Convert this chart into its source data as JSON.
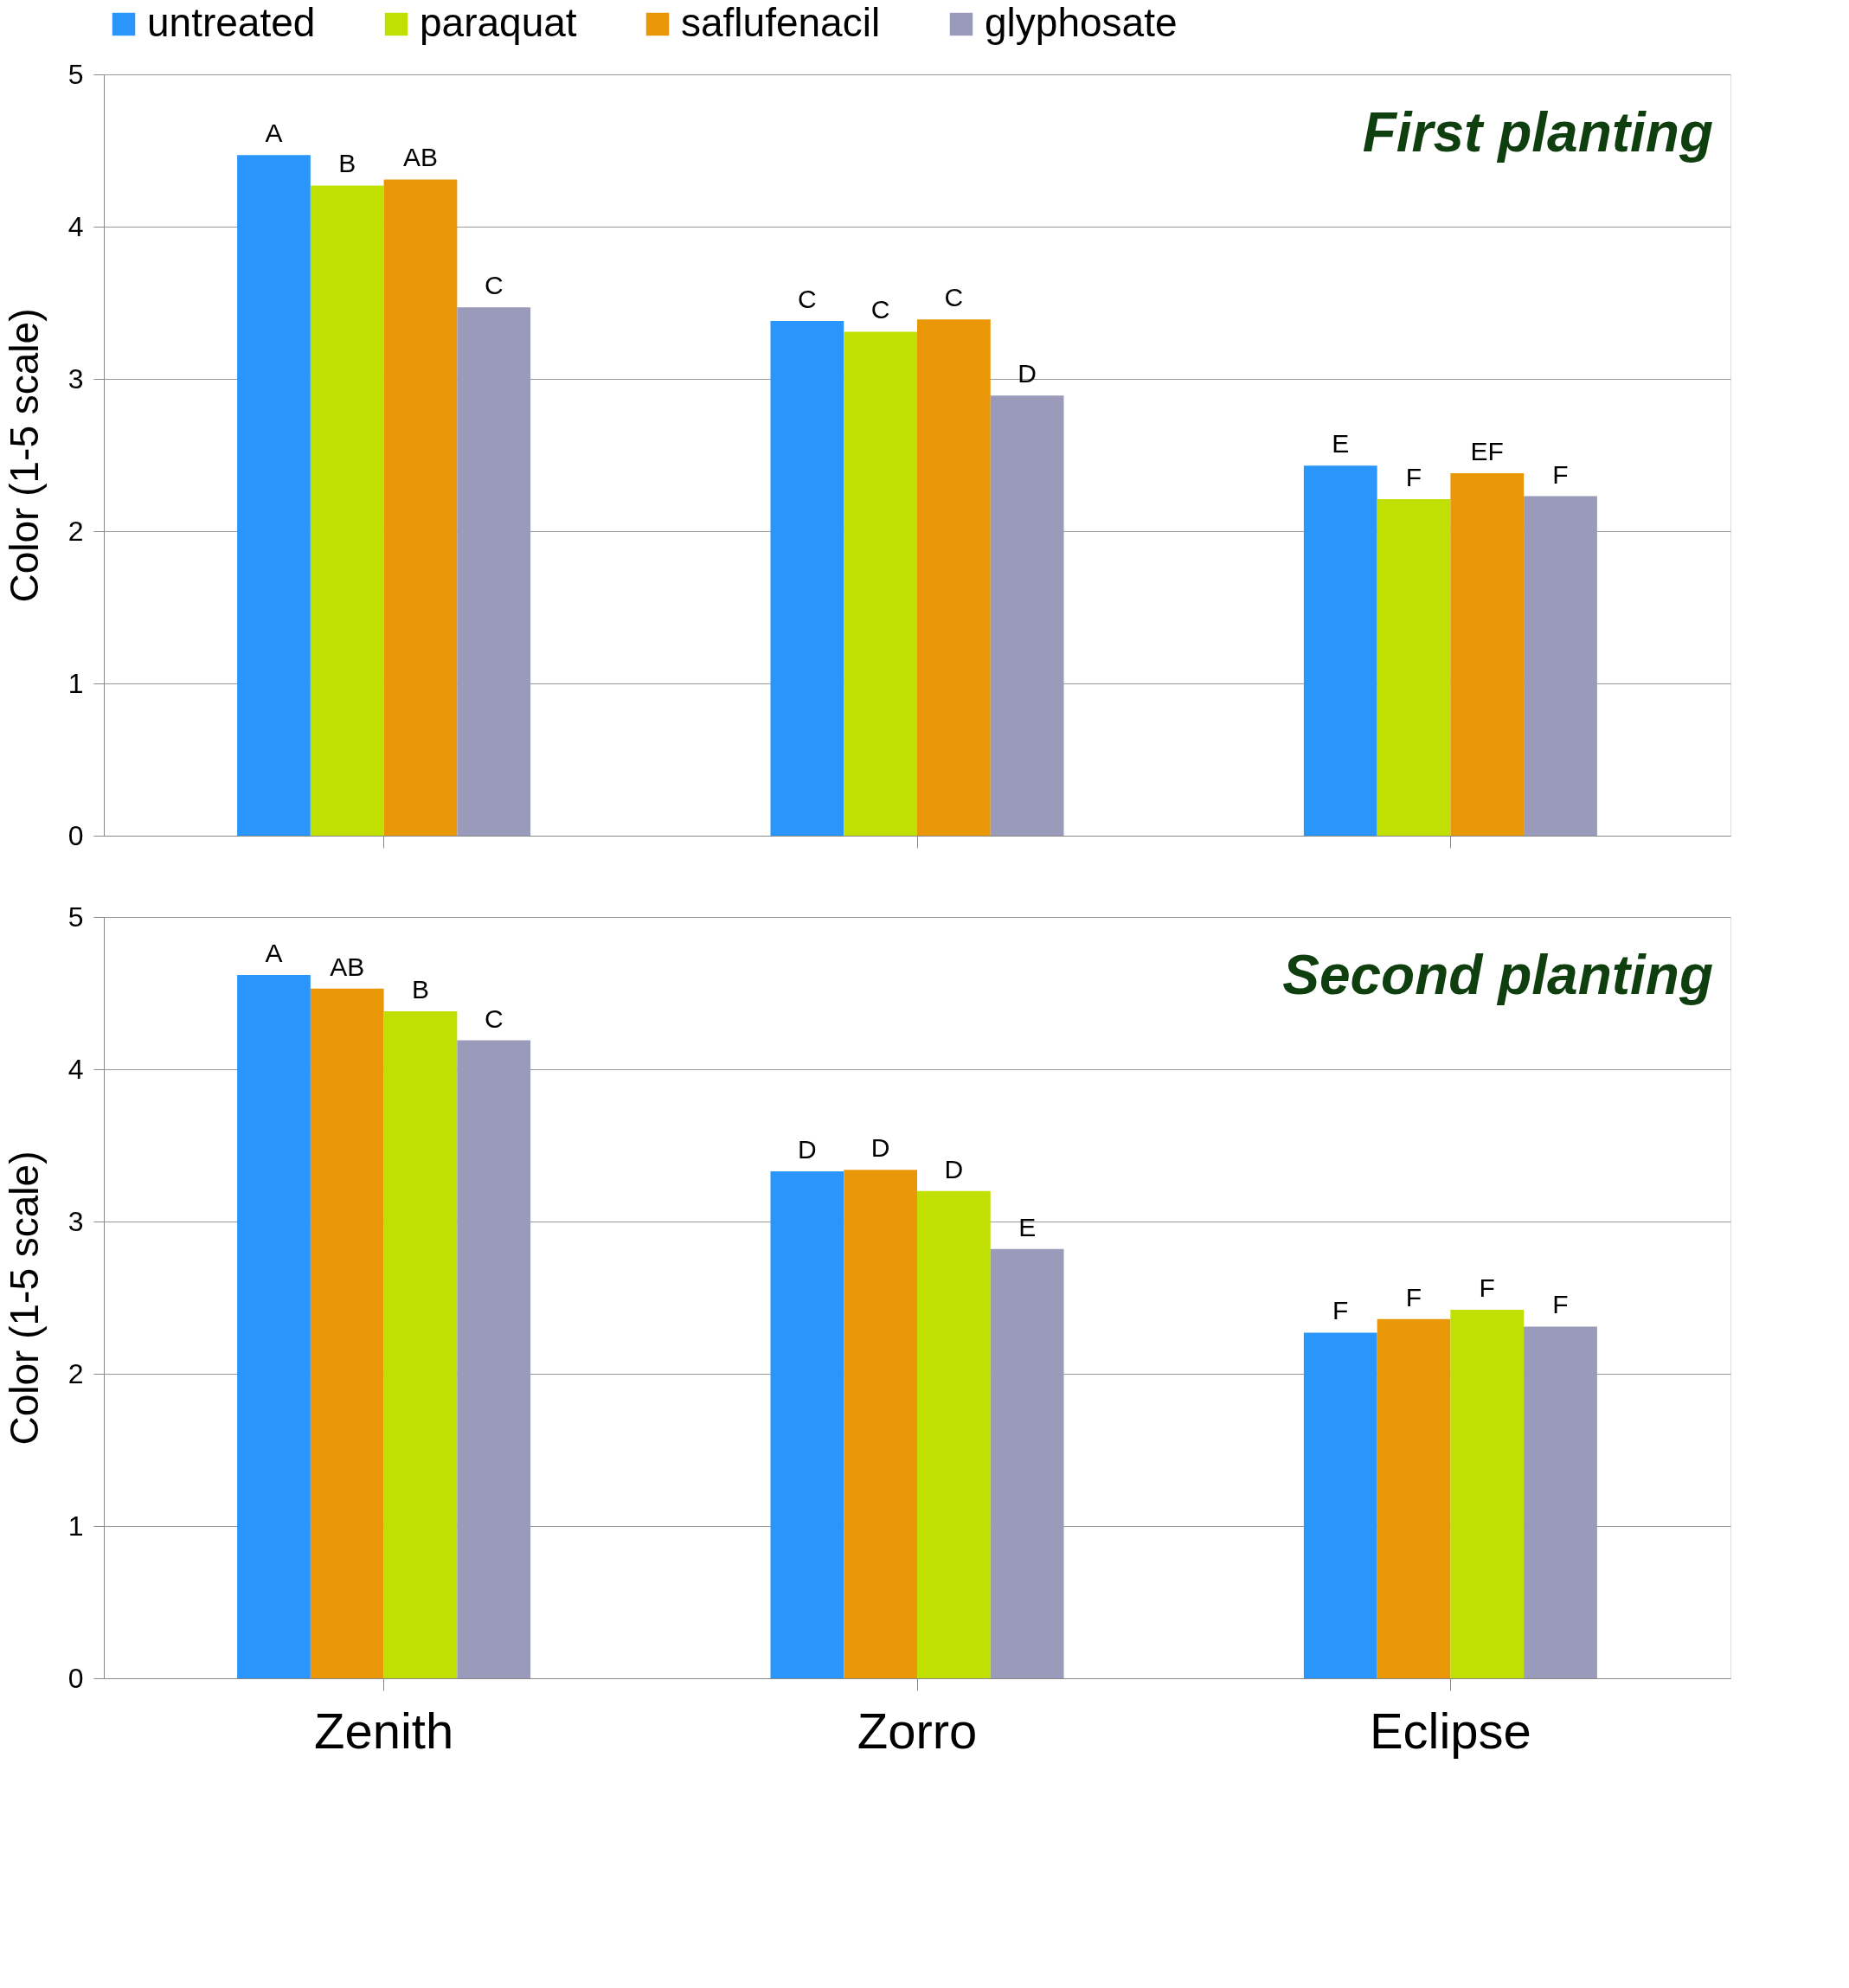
{
  "chart_data": [
    {
      "type": "bar",
      "categories": [
        null,
        null,
        null
      ],
      "ylabel": "Color (1-5 scale)",
      "ylim": [
        0,
        5
      ],
      "yticks": [
        0,
        1,
        2,
        3,
        4,
        5
      ],
      "grid": "y",
      "legend": "top",
      "tick_labels": "y",
      "annotations": [
        "First planting"
      ],
      "series": [
        {
          "name": "untreated",
          "color": "#2a96fc",
          "values": [
            4.47,
            3.38,
            2.43
          ],
          "value_labels": [
            "A",
            "C",
            "E"
          ]
        },
        {
          "name": "paraquat",
          "color": "#c0e004",
          "values": [
            4.27,
            3.31,
            2.21
          ],
          "value_labels": [
            "B",
            "C",
            "F"
          ]
        },
        {
          "name": "saflufenacil",
          "color": "#e99707",
          "values": [
            4.31,
            3.39,
            2.38
          ],
          "value_labels": [
            "AB",
            "C",
            "EF"
          ]
        },
        {
          "name": "glyphosate",
          "color": "#9a9aba",
          "values": [
            3.47,
            2.89,
            2.23
          ],
          "value_labels": [
            "C",
            "D",
            "F"
          ]
        }
      ]
    },
    {
      "type": "bar",
      "categories": [
        "Zenith",
        "Zorro",
        "Eclipse"
      ],
      "ylabel": "Color (1-5 scale)",
      "ylim": [
        0,
        5
      ],
      "yticks": [
        0,
        1,
        2,
        3,
        4,
        5
      ],
      "grid": "y",
      "annotations": [
        "Second planting"
      ],
      "series": [
        {
          "name": "untreated",
          "color": "#2a96fc",
          "values": [
            4.62,
            3.33,
            2.27
          ],
          "value_labels": [
            "A",
            "D",
            "F"
          ]
        },
        {
          "name": "saflufenacil",
          "color": "#e99707",
          "values": [
            4.53,
            3.34,
            2.36
          ],
          "value_labels": [
            "AB",
            "D",
            "F"
          ]
        },
        {
          "name": "paraquat",
          "color": "#c0e004",
          "values": [
            4.38,
            3.2,
            2.42
          ],
          "value_labels": [
            "B",
            "D",
            "F"
          ]
        },
        {
          "name": "glyphosate",
          "color": "#9a9aba",
          "values": [
            4.19,
            2.82,
            2.31
          ],
          "value_labels": [
            "C",
            "E",
            "F"
          ]
        }
      ]
    }
  ]
}
